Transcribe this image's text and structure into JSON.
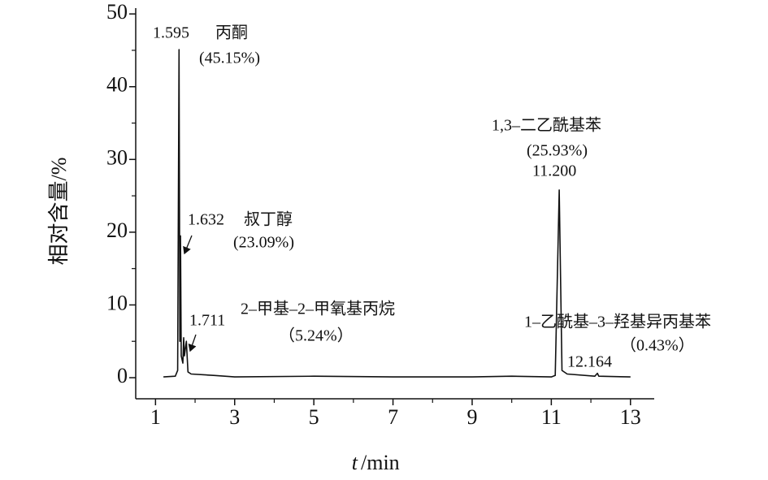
{
  "chart_data": {
    "type": "line",
    "ylabel": "相对含量/%",
    "xlabel_var": "t",
    "xlabel_unit": "/min",
    "xlim": [
      0.5,
      13.6
    ],
    "ylim": [
      -2.9,
      50.8
    ],
    "xticks": [
      1,
      3,
      5,
      7,
      9,
      11,
      13
    ],
    "xminorticks": [
      2,
      4,
      6,
      8,
      10,
      12
    ],
    "yticks": [
      0,
      10,
      20,
      30,
      40,
      50
    ],
    "yminorticks": [
      5,
      15,
      25,
      35,
      45
    ],
    "color": "#111111",
    "x": [
      1.2,
      1.5,
      1.56,
      1.595,
      1.615,
      1.632,
      1.65,
      1.69,
      1.711,
      1.73,
      1.78,
      1.82,
      1.9,
      2.5,
      3,
      5,
      7,
      9,
      10,
      11,
      11.1,
      11.2,
      11.27,
      11.4,
      12.1,
      12.164,
      12.2,
      13
    ],
    "y": [
      0.1,
      0.2,
      1,
      45.1,
      5,
      19.5,
      3,
      2,
      5.5,
      3,
      5,
      0.8,
      0.5,
      0.3,
      0.1,
      0.2,
      0.1,
      0.1,
      0.2,
      0.1,
      0.3,
      25.8,
      1,
      0.5,
      0.2,
      0.6,
      0.2,
      0.1
    ],
    "annotations": [
      {
        "time": "1.595",
        "name": "丙酮",
        "percent": "(45.15%)"
      },
      {
        "time": "1.632",
        "name": "叔丁醇",
        "percent": "(23.09%)"
      },
      {
        "time": "1.711",
        "name": "2–甲基–2–甲氧基丙烷",
        "percent": "（5.24%）"
      },
      {
        "time": "11.200",
        "name": "1,3–二乙酰基苯",
        "percent": "(25.93%)"
      },
      {
        "time": "12.164",
        "name": "1–乙酰基–3–羟基异丙基苯",
        "percent": "（0.43%）"
      }
    ]
  }
}
